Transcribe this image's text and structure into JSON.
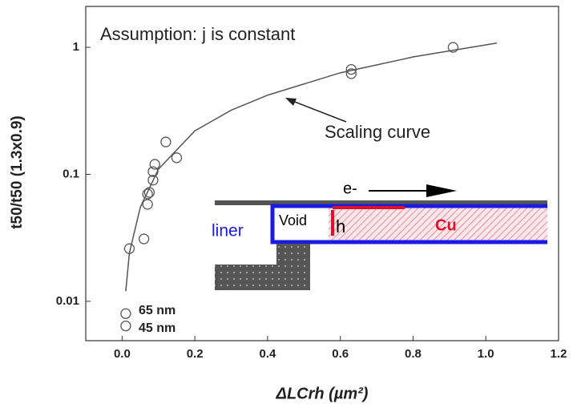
{
  "chart_data": {
    "type": "scatter",
    "x_label": "ΔLCrh (µm²)",
    "y_label": "t50/t50 (1.3x0.9)",
    "y_log": true,
    "xlim": [
      -0.1,
      1.2
    ],
    "ylim": [
      0.0049,
      2.1
    ],
    "xticks": [
      {
        "value": 0,
        "label": "0.0"
      },
      0.2,
      0.4,
      0.6,
      0.8,
      {
        "value": 1,
        "label": "1.0"
      },
      1.2
    ],
    "yticks": [
      0.01,
      0.1,
      1
    ],
    "series": [
      {
        "style": "markers",
        "color": "#555555",
        "x": [
          0.01,
          0.01,
          0.02,
          0.06,
          0.07,
          0.07,
          0.075,
          0.085,
          0.085,
          0.09,
          0.12,
          0.15,
          0.63,
          0.63,
          0.91
        ],
        "values": [
          0.008,
          0.0064,
          0.026,
          0.031,
          0.058,
          0.07,
          0.072,
          0.09,
          0.105,
          0.12,
          0.18,
          0.135,
          0.62,
          0.67,
          1.0
        ]
      },
      {
        "style": "line",
        "color": "#555555",
        "x": [
          0.01,
          0.02,
          0.05,
          0.1,
          0.2,
          0.3,
          0.4,
          0.6,
          0.8,
          1.03
        ],
        "values": [
          0.012,
          0.024,
          0.055,
          0.11,
          0.22,
          0.32,
          0.42,
          0.63,
          0.84,
          1.08
        ]
      }
    ],
    "annotations": [
      "Assumption: j is constant",
      "Scaling curve",
      "65 nm",
      "45 nm"
    ],
    "inset_labels": [
      "e-",
      "liner",
      "Void",
      "h",
      "Cu"
    ]
  }
}
